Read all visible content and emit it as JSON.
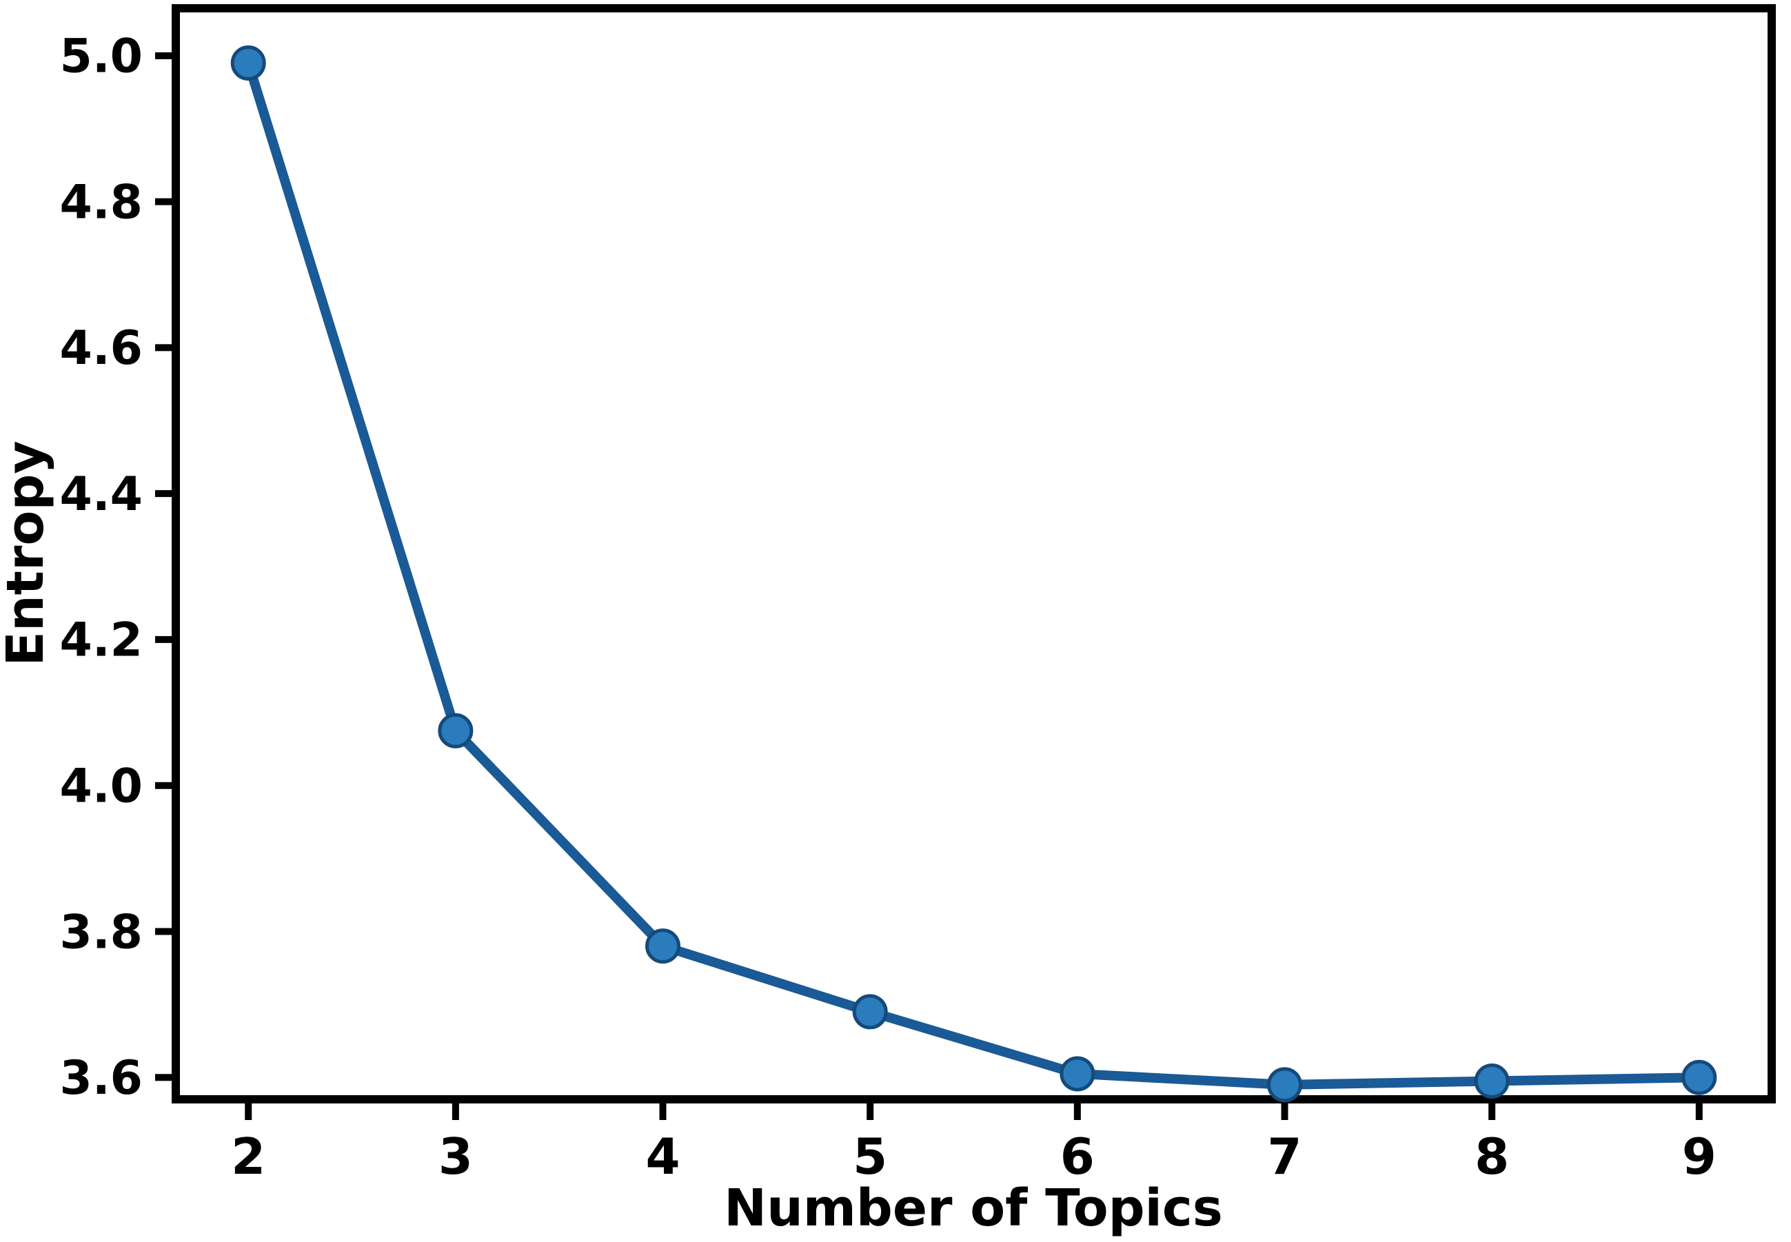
{
  "chart_data": {
    "type": "line",
    "x": [
      2,
      3,
      4,
      5,
      6,
      7,
      8,
      9
    ],
    "series": [
      {
        "name": "Entropy",
        "values": [
          4.99,
          4.075,
          3.78,
          3.69,
          3.605,
          3.59,
          3.595,
          3.6
        ]
      }
    ],
    "title": "",
    "xlabel": "Number of Topics",
    "ylabel": "Entropy",
    "xlim": [
      1.65,
      9.35
    ],
    "ylim": [
      3.57,
      5.065
    ],
    "xticks": [
      2,
      3,
      4,
      5,
      6,
      7,
      8,
      9
    ],
    "xtick_labels": [
      "2",
      "3",
      "4",
      "5",
      "6",
      "7",
      "8",
      "9"
    ],
    "yticks": [
      3.6,
      3.8,
      4.0,
      4.2,
      4.4,
      4.6,
      4.8,
      5.0
    ],
    "ytick_labels": [
      "3.6",
      "3.8",
      "4.0",
      "4.2",
      "4.4",
      "4.6",
      "4.8",
      "5.0"
    ],
    "grid": false,
    "legend_position": "none",
    "marker_shape": "circle",
    "colors": {
      "line": "#1a5a96",
      "marker_fill": "#2b7cbd",
      "marker_edge": "#154a7a",
      "axis": "#000000",
      "background": "#ffffff"
    }
  }
}
